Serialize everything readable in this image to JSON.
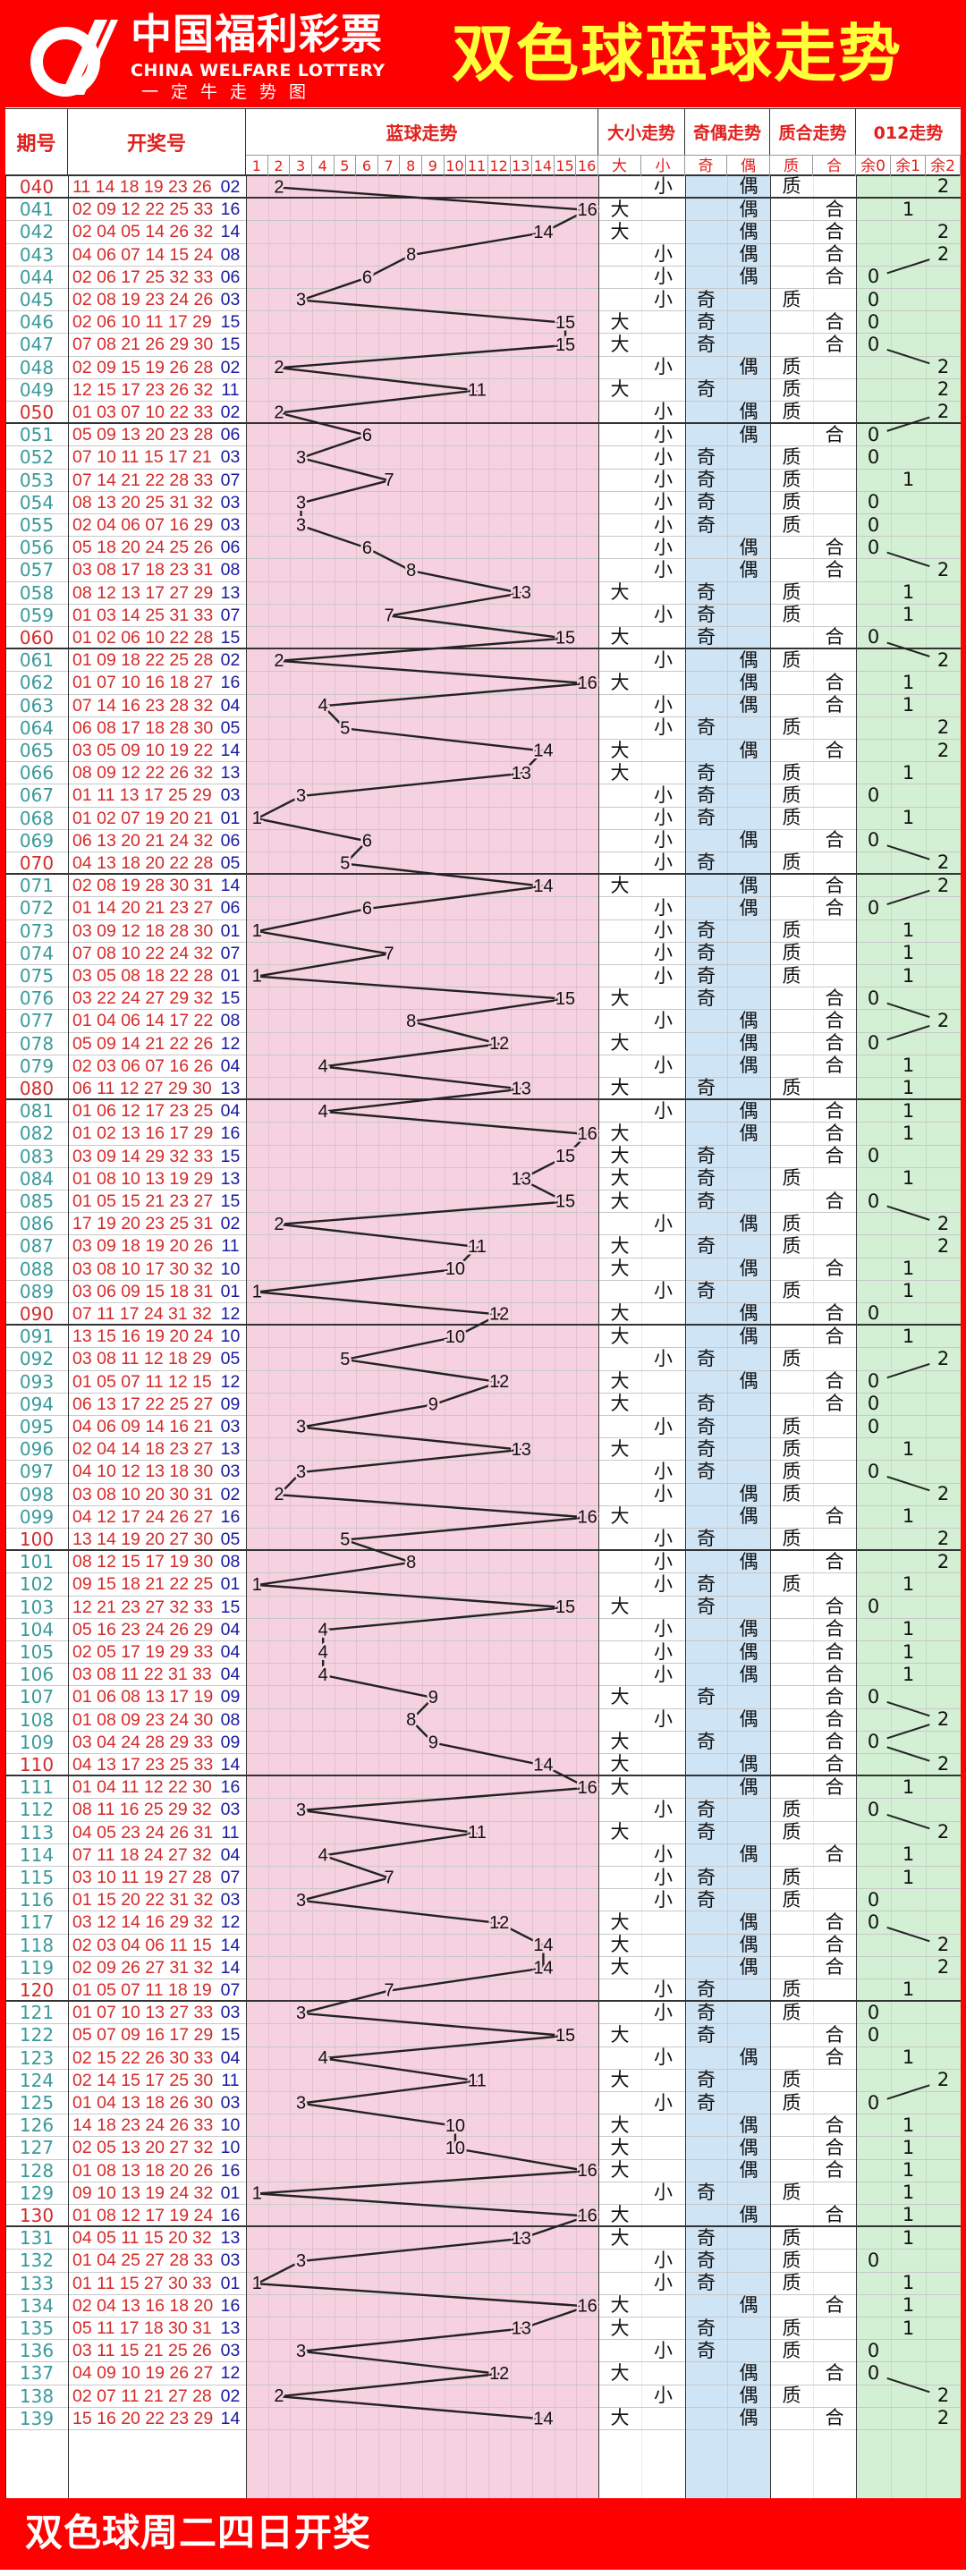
{
  "header": {
    "brand_cn": "中国福利彩票",
    "brand_en": "CHINA WELFARE LOTTERY",
    "brand_sub": "一定牛走势图",
    "title": "双色球蓝球走势"
  },
  "columns": {
    "issue": "期号",
    "numbers": "开奖号",
    "blue_trend": "蓝球走势",
    "size_trend": "大小走势",
    "parity_trend": "奇偶走势",
    "prime_trend": "质合走势",
    "mod_trend": "012走势",
    "blue_ticks": [
      "1",
      "2",
      "3",
      "4",
      "5",
      "6",
      "7",
      "8",
      "9",
      "10",
      "11",
      "12",
      "13",
      "14",
      "15",
      "16"
    ],
    "sub": [
      "大",
      "小",
      "奇",
      "偶",
      "质",
      "合",
      "余0",
      "余1",
      "余2"
    ]
  },
  "colors": {
    "brand_red": "#fe0000",
    "title_yellow": "#ffff3a",
    "trend_bg": "#f6d2e0",
    "parity_bg": "#cfe4f5",
    "mod_bg": "#d4f0d4",
    "red_ball": "#d42a2a",
    "blue_ball": "#1a1aa0"
  },
  "rows": [
    [
      "040",
      "11 14 18 19 23 26",
      "02",
      "小",
      "偶",
      "质",
      "2"
    ],
    [
      "041",
      "02 09 12 22 25 33",
      "16",
      "大",
      "偶",
      "合",
      "1"
    ],
    [
      "042",
      "02 04 05 14 26 32",
      "14",
      "大",
      "偶",
      "合",
      "2"
    ],
    [
      "043",
      "04 06 07 14 15 24",
      "08",
      "小",
      "偶",
      "合",
      "2"
    ],
    [
      "044",
      "02 06 17 25 32 33",
      "06",
      "小",
      "偶",
      "合",
      "0"
    ],
    [
      "045",
      "02 08 19 23 24 26",
      "03",
      "小",
      "奇",
      "质",
      "0"
    ],
    [
      "046",
      "02 06 10 11 17 29",
      "15",
      "大",
      "奇",
      "合",
      "0"
    ],
    [
      "047",
      "07 08 21 26 29 30",
      "15",
      "大",
      "奇",
      "合",
      "0"
    ],
    [
      "048",
      "02 09 15 19 26 28",
      "02",
      "小",
      "偶",
      "质",
      "2"
    ],
    [
      "049",
      "12 15 17 23 26 32",
      "11",
      "大",
      "奇",
      "质",
      "2"
    ],
    [
      "050",
      "01 03 07 10 22 33",
      "02",
      "小",
      "偶",
      "质",
      "2"
    ],
    [
      "051",
      "05 09 13 20 23 28",
      "06",
      "小",
      "偶",
      "合",
      "0"
    ],
    [
      "052",
      "07 10 11 15 17 21",
      "03",
      "小",
      "奇",
      "质",
      "0"
    ],
    [
      "053",
      "07 14 21 22 28 33",
      "07",
      "小",
      "奇",
      "质",
      "1"
    ],
    [
      "054",
      "08 13 20 25 31 32",
      "03",
      "小",
      "奇",
      "质",
      "0"
    ],
    [
      "055",
      "02 04 06 07 16 29",
      "03",
      "小",
      "奇",
      "质",
      "0"
    ],
    [
      "056",
      "05 18 20 24 25 26",
      "06",
      "小",
      "偶",
      "合",
      "0"
    ],
    [
      "057",
      "03 08 17 18 23 31",
      "08",
      "小",
      "偶",
      "合",
      "2"
    ],
    [
      "058",
      "08 12 13 17 27 29",
      "13",
      "大",
      "奇",
      "质",
      "1"
    ],
    [
      "059",
      "01 03 14 25 31 33",
      "07",
      "小",
      "奇",
      "质",
      "1"
    ],
    [
      "060",
      "01 02 06 10 22 28",
      "15",
      "大",
      "奇",
      "合",
      "0"
    ],
    [
      "061",
      "01 09 18 22 25 28",
      "02",
      "小",
      "偶",
      "质",
      "2"
    ],
    [
      "062",
      "01 07 10 16 18 27",
      "16",
      "大",
      "偶",
      "合",
      "1"
    ],
    [
      "063",
      "07 14 16 23 28 32",
      "04",
      "小",
      "偶",
      "合",
      "1"
    ],
    [
      "064",
      "06 08 17 18 28 30",
      "05",
      "小",
      "奇",
      "质",
      "2"
    ],
    [
      "065",
      "03 05 09 10 19 22",
      "14",
      "大",
      "偶",
      "合",
      "2"
    ],
    [
      "066",
      "08 09 12 22 26 32",
      "13",
      "大",
      "奇",
      "质",
      "1"
    ],
    [
      "067",
      "01 11 13 17 25 29",
      "03",
      "小",
      "奇",
      "质",
      "0"
    ],
    [
      "068",
      "01 02 07 19 20 21",
      "01",
      "小",
      "奇",
      "质",
      "1"
    ],
    [
      "069",
      "06 13 20 21 24 32",
      "06",
      "小",
      "偶",
      "合",
      "0"
    ],
    [
      "070",
      "04 13 18 20 22 28",
      "05",
      "小",
      "奇",
      "质",
      "2"
    ],
    [
      "071",
      "02 08 19 28 30 31",
      "14",
      "大",
      "偶",
      "合",
      "2"
    ],
    [
      "072",
      "01 14 20 21 23 27",
      "06",
      "小",
      "偶",
      "合",
      "0"
    ],
    [
      "073",
      "03 09 12 18 28 30",
      "01",
      "小",
      "奇",
      "质",
      "1"
    ],
    [
      "074",
      "07 08 10 22 24 32",
      "07",
      "小",
      "奇",
      "质",
      "1"
    ],
    [
      "075",
      "03 05 08 18 22 28",
      "01",
      "小",
      "奇",
      "质",
      "1"
    ],
    [
      "076",
      "03 22 24 27 29 32",
      "15",
      "大",
      "奇",
      "合",
      "0"
    ],
    [
      "077",
      "01 04 06 14 17 22",
      "08",
      "小",
      "偶",
      "合",
      "2"
    ],
    [
      "078",
      "05 09 14 21 22 26",
      "12",
      "大",
      "偶",
      "合",
      "0"
    ],
    [
      "079",
      "02 03 06 07 16 26",
      "04",
      "小",
      "偶",
      "合",
      "1"
    ],
    [
      "080",
      "06 11 12 27 29 30",
      "13",
      "大",
      "奇",
      "质",
      "1"
    ],
    [
      "081",
      "01 06 12 17 23 25",
      "04",
      "小",
      "偶",
      "合",
      "1"
    ],
    [
      "082",
      "01 02 13 16 17 29",
      "16",
      "大",
      "偶",
      "合",
      "1"
    ],
    [
      "083",
      "03 09 14 29 32 33",
      "15",
      "大",
      "奇",
      "合",
      "0"
    ],
    [
      "084",
      "01 08 10 13 19 29",
      "13",
      "大",
      "奇",
      "质",
      "1"
    ],
    [
      "085",
      "01 05 15 21 23 27",
      "15",
      "大",
      "奇",
      "合",
      "0"
    ],
    [
      "086",
      "17 19 20 23 25 31",
      "02",
      "小",
      "偶",
      "质",
      "2"
    ],
    [
      "087",
      "03 09 18 19 20 26",
      "11",
      "大",
      "奇",
      "质",
      "2"
    ],
    [
      "088",
      "03 08 10 17 30 32",
      "10",
      "大",
      "偶",
      "合",
      "1"
    ],
    [
      "089",
      "03 06 09 15 18 31",
      "01",
      "小",
      "奇",
      "质",
      "1"
    ],
    [
      "090",
      "07 11 17 24 31 32",
      "12",
      "大",
      "偶",
      "合",
      "0"
    ],
    [
      "091",
      "13 15 16 19 20 24",
      "10",
      "大",
      "偶",
      "合",
      "1"
    ],
    [
      "092",
      "03 08 11 12 18 29",
      "05",
      "小",
      "奇",
      "质",
      "2"
    ],
    [
      "093",
      "01 05 07 11 12 15",
      "12",
      "大",
      "偶",
      "合",
      "0"
    ],
    [
      "094",
      "06 13 17 22 25 27",
      "09",
      "大",
      "奇",
      "合",
      "0"
    ],
    [
      "095",
      "04 06 09 14 16 21",
      "03",
      "小",
      "奇",
      "质",
      "0"
    ],
    [
      "096",
      "02 04 14 18 23 27",
      "13",
      "大",
      "奇",
      "质",
      "1"
    ],
    [
      "097",
      "04 10 12 13 18 30",
      "03",
      "小",
      "奇",
      "质",
      "0"
    ],
    [
      "098",
      "03 08 10 20 30 31",
      "02",
      "小",
      "偶",
      "质",
      "2"
    ],
    [
      "099",
      "04 12 17 24 26 27",
      "16",
      "大",
      "偶",
      "合",
      "1"
    ],
    [
      "100",
      "13 14 19 20 27 30",
      "05",
      "小",
      "奇",
      "质",
      "2"
    ],
    [
      "101",
      "08 12 15 17 19 30",
      "08",
      "小",
      "偶",
      "合",
      "2"
    ],
    [
      "102",
      "09 15 18 21 22 25",
      "01",
      "小",
      "奇",
      "质",
      "1"
    ],
    [
      "103",
      "12 21 23 27 32 33",
      "15",
      "大",
      "奇",
      "合",
      "0"
    ],
    [
      "104",
      "05 16 23 24 26 29",
      "04",
      "小",
      "偶",
      "合",
      "1"
    ],
    [
      "105",
      "02 05 17 19 29 33",
      "04",
      "小",
      "偶",
      "合",
      "1"
    ],
    [
      "106",
      "03 08 11 22 31 33",
      "04",
      "小",
      "偶",
      "合",
      "1"
    ],
    [
      "107",
      "01 06 08 13 17 19",
      "09",
      "大",
      "奇",
      "合",
      "0"
    ],
    [
      "108",
      "01 08 09 23 24 30",
      "08",
      "小",
      "偶",
      "合",
      "2"
    ],
    [
      "109",
      "03 04 24 28 29 33",
      "09",
      "大",
      "奇",
      "合",
      "0"
    ],
    [
      "110",
      "04 13 17 23 25 33",
      "14",
      "大",
      "偶",
      "合",
      "2"
    ],
    [
      "111",
      "01 04 11 12 22 30",
      "16",
      "大",
      "偶",
      "合",
      "1"
    ],
    [
      "112",
      "08 11 16 25 29 32",
      "03",
      "小",
      "奇",
      "质",
      "0"
    ],
    [
      "113",
      "04 05 23 24 26 31",
      "11",
      "大",
      "奇",
      "质",
      "2"
    ],
    [
      "114",
      "07 11 18 24 27 32",
      "04",
      "小",
      "偶",
      "合",
      "1"
    ],
    [
      "115",
      "03 10 11 19 27 28",
      "07",
      "小",
      "奇",
      "质",
      "1"
    ],
    [
      "116",
      "01 15 20 22 31 32",
      "03",
      "小",
      "奇",
      "质",
      "0"
    ],
    [
      "117",
      "03 12 14 16 29 32",
      "12",
      "大",
      "偶",
      "合",
      "0"
    ],
    [
      "118",
      "02 03 04 06 11 15",
      "14",
      "大",
      "偶",
      "合",
      "2"
    ],
    [
      "119",
      "02 09 26 27 31 32",
      "14",
      "大",
      "偶",
      "合",
      "2"
    ],
    [
      "120",
      "01 05 07 11 18 19",
      "07",
      "小",
      "奇",
      "质",
      "1"
    ],
    [
      "121",
      "01 07 10 13 27 33",
      "03",
      "小",
      "奇",
      "质",
      "0"
    ],
    [
      "122",
      "05 07 09 16 17 29",
      "15",
      "大",
      "奇",
      "合",
      "0"
    ],
    [
      "123",
      "02 15 22 26 30 33",
      "04",
      "小",
      "偶",
      "合",
      "1"
    ],
    [
      "124",
      "02 14 15 17 25 30",
      "11",
      "大",
      "奇",
      "质",
      "2"
    ],
    [
      "125",
      "01 04 13 18 26 30",
      "03",
      "小",
      "奇",
      "质",
      "0"
    ],
    [
      "126",
      "14 18 23 24 26 33",
      "10",
      "大",
      "偶",
      "合",
      "1"
    ],
    [
      "127",
      "02 05 13 20 27 32",
      "10",
      "大",
      "偶",
      "合",
      "1"
    ],
    [
      "128",
      "01 08 13 18 20 26",
      "16",
      "大",
      "偶",
      "合",
      "1"
    ],
    [
      "129",
      "09 10 13 19 24 32",
      "01",
      "小",
      "奇",
      "质",
      "1"
    ],
    [
      "130",
      "01 08 12 17 19 24",
      "16",
      "大",
      "偶",
      "合",
      "1"
    ],
    [
      "131",
      "04 05 11 15 20 32",
      "13",
      "大",
      "奇",
      "质",
      "1"
    ],
    [
      "132",
      "01 04 25 27 28 33",
      "03",
      "小",
      "奇",
      "质",
      "0"
    ],
    [
      "133",
      "01 11 15 27 30 33",
      "01",
      "小",
      "奇",
      "质",
      "1"
    ],
    [
      "134",
      "02 04 13 16 18 20",
      "16",
      "大",
      "偶",
      "合",
      "1"
    ],
    [
      "135",
      "05 11 17 18 30 31",
      "13",
      "大",
      "奇",
      "质",
      "1"
    ],
    [
      "136",
      "03 11 15 21 25 26",
      "03",
      "小",
      "奇",
      "质",
      "0"
    ],
    [
      "137",
      "04 09 10 19 26 27",
      "12",
      "大",
      "偶",
      "合",
      "0"
    ],
    [
      "138",
      "02 07 11 21 27 28",
      "02",
      "小",
      "偶",
      "质",
      "2"
    ],
    [
      "139",
      "15 16 20 22 23 29",
      "14",
      "大",
      "偶",
      "合",
      "2"
    ]
  ],
  "footer": {
    "text": "双色球周二四日开奖"
  }
}
